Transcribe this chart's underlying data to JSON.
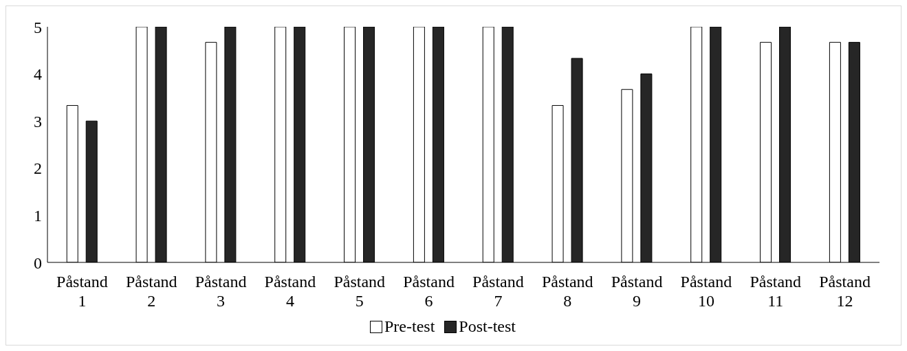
{
  "chart_data": {
    "type": "bar",
    "categories": [
      "Påstand 1",
      "Påstand 2",
      "Påstand 3",
      "Påstand 4",
      "Påstand 5",
      "Påstand 6",
      "Påstand 7",
      "Påstand 8",
      "Påstand 9",
      "Påstand 10",
      "Påstand 11",
      "Påstand 12"
    ],
    "series": [
      {
        "name": "Pre-test",
        "color": "#ffffff",
        "values": [
          3.33,
          5,
          4.67,
          5,
          5,
          5,
          5,
          3.33,
          3.67,
          5,
          4.67,
          4.67
        ]
      },
      {
        "name": "Post-test",
        "color": "#262626",
        "values": [
          3,
          5,
          5,
          5,
          5,
          5,
          5,
          4.33,
          4,
          5,
          5,
          4.67
        ]
      }
    ],
    "ylim": [
      0,
      5
    ],
    "yticks": [
      0,
      1,
      2,
      3,
      4,
      5
    ],
    "legend": "bottom"
  }
}
